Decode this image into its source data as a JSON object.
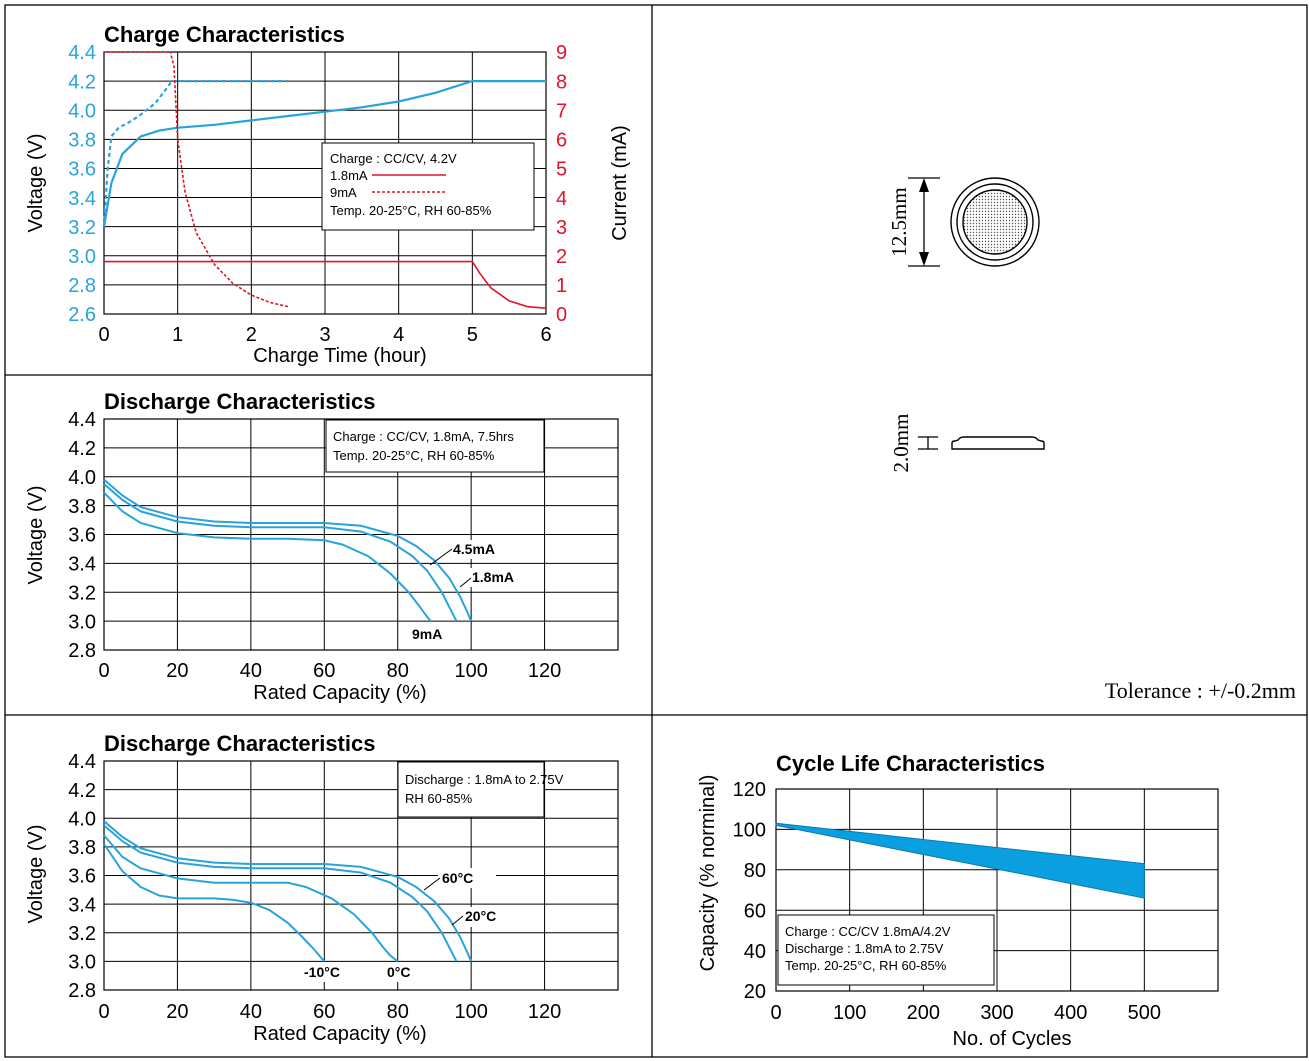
{
  "colors": {
    "blue": "#29a3dc",
    "red": "#e0142a",
    "black": "#000000",
    "band": "#0aa0e0"
  },
  "chart_data": [
    {
      "id": "charge",
      "type": "line",
      "title": "Charge Characteristics",
      "xlabel": "Charge Time (hour)",
      "ylabel": "Voltage (V)",
      "y2label": "Current (mA)",
      "xlim": [
        0,
        6
      ],
      "ylim": [
        2.6,
        4.4
      ],
      "y2lim": [
        0,
        9
      ],
      "xticks": [
        "0",
        "1",
        "2",
        "3",
        "4",
        "5",
        "6"
      ],
      "yticks": [
        "2.6",
        "2.8",
        "3.0",
        "3.2",
        "3.4",
        "3.6",
        "3.8",
        "4.0",
        "4.2",
        "4.4"
      ],
      "y2ticks": [
        "0",
        "1",
        "2",
        "3",
        "4",
        "5",
        "6",
        "7",
        "8",
        "9"
      ],
      "legend": {
        "lines": [
          "Charge : CC/CV, 4.2V",
          "1.8mA",
          "9mA",
          "Temp. 20-25°C, RH 60-85%"
        ]
      },
      "series": [
        {
          "name": "1.8mA",
          "quantity": "voltage",
          "style": "solid",
          "x": [
            0,
            0.1,
            0.25,
            0.5,
            0.75,
            1.0,
            1.5,
            2,
            2.5,
            3,
            3.5,
            4,
            4.5,
            5,
            5.5,
            6
          ],
          "y": [
            3.2,
            3.5,
            3.7,
            3.82,
            3.86,
            3.88,
            3.9,
            3.93,
            3.96,
            3.99,
            4.02,
            4.06,
            4.12,
            4.2,
            4.2,
            4.2
          ]
        },
        {
          "name": "9mA",
          "quantity": "voltage",
          "style": "dashed",
          "x": [
            0,
            0.05,
            0.1,
            0.2,
            0.35,
            0.5,
            0.7,
            0.85,
            0.92,
            1.0,
            1.5,
            2,
            2.5
          ],
          "y": [
            3.2,
            3.6,
            3.82,
            3.88,
            3.92,
            3.97,
            4.05,
            4.15,
            4.2,
            4.2,
            4.2,
            4.2,
            4.2
          ]
        },
        {
          "name": "1.8mA",
          "quantity": "current",
          "style": "solid",
          "x": [
            0,
            1,
            2,
            3,
            4,
            5,
            5.1,
            5.25,
            5.5,
            5.75,
            6
          ],
          "y": [
            1.8,
            1.8,
            1.8,
            1.8,
            1.8,
            1.8,
            1.4,
            0.9,
            0.45,
            0.25,
            0.2
          ]
        },
        {
          "name": "9mA",
          "quantity": "current",
          "style": "dashed",
          "x": [
            0,
            0.5,
            0.9,
            0.95,
            1.0,
            1.1,
            1.25,
            1.5,
            1.75,
            2.0,
            2.25,
            2.5
          ],
          "y": [
            9,
            9,
            9,
            8.5,
            6.0,
            4.2,
            2.8,
            1.7,
            1.05,
            0.65,
            0.4,
            0.25
          ]
        }
      ]
    },
    {
      "id": "discharge-rate",
      "type": "line",
      "title": "Discharge Characteristics",
      "xlabel": "Rated Capacity (%)",
      "ylabel": "Voltage (V)",
      "xlim": [
        0,
        140
      ],
      "ylim": [
        2.8,
        4.4
      ],
      "xticks": [
        "0",
        "20",
        "40",
        "60",
        "80",
        "100",
        "120"
      ],
      "yticks": [
        "2.8",
        "3.0",
        "3.2",
        "3.4",
        "3.6",
        "3.8",
        "4.0",
        "4.2",
        "4.4"
      ],
      "legend": {
        "lines": [
          "Charge : CC/CV, 1.8mA, 7.5hrs",
          "Temp. 20-25°C, RH 60-85%"
        ]
      },
      "series": [
        {
          "name": "1.8mA",
          "label_text": "1.8mA",
          "x": [
            0,
            5,
            10,
            20,
            30,
            40,
            50,
            60,
            70,
            80,
            85,
            90,
            94,
            97,
            99,
            100
          ],
          "y": [
            3.98,
            3.87,
            3.79,
            3.72,
            3.69,
            3.68,
            3.68,
            3.68,
            3.66,
            3.59,
            3.52,
            3.42,
            3.3,
            3.17,
            3.06,
            3.0
          ]
        },
        {
          "name": "4.5mA",
          "label_text": "4.5mA",
          "x": [
            0,
            5,
            10,
            20,
            30,
            40,
            50,
            60,
            70,
            78,
            84,
            88,
            92,
            95,
            96
          ],
          "y": [
            3.95,
            3.84,
            3.76,
            3.69,
            3.66,
            3.65,
            3.65,
            3.65,
            3.62,
            3.55,
            3.45,
            3.35,
            3.2,
            3.05,
            3.0
          ]
        },
        {
          "name": "9mA",
          "label_text": "9mA",
          "x": [
            0,
            5,
            10,
            20,
            30,
            40,
            50,
            60,
            65,
            72,
            78,
            83,
            86,
            88,
            89
          ],
          "y": [
            3.89,
            3.76,
            3.68,
            3.61,
            3.58,
            3.57,
            3.57,
            3.56,
            3.53,
            3.45,
            3.33,
            3.2,
            3.1,
            3.03,
            3.0
          ]
        }
      ]
    },
    {
      "id": "discharge-temp",
      "type": "line",
      "title": "Discharge Characteristics",
      "xlabel": "Rated Capacity (%)",
      "ylabel": "Voltage (V)",
      "xlim": [
        0,
        140
      ],
      "ylim": [
        2.8,
        4.4
      ],
      "xticks": [
        "0",
        "20",
        "40",
        "60",
        "80",
        "100",
        "120"
      ],
      "yticks": [
        "2.8",
        "3.0",
        "3.2",
        "3.4",
        "3.6",
        "3.8",
        "4.0",
        "4.2",
        "4.4"
      ],
      "legend": {
        "lines": [
          "Discharge : 1.8mA to 2.75V",
          "RH 60-85%"
        ]
      },
      "series": [
        {
          "name": "20°C",
          "label_text": "20°C",
          "x": [
            0,
            5,
            10,
            20,
            30,
            40,
            50,
            60,
            70,
            80,
            85,
            90,
            94,
            97,
            99,
            100
          ],
          "y": [
            3.98,
            3.87,
            3.79,
            3.72,
            3.69,
            3.68,
            3.68,
            3.68,
            3.66,
            3.59,
            3.52,
            3.42,
            3.3,
            3.17,
            3.06,
            3.0
          ]
        },
        {
          "name": "60°C",
          "label_text": "60°C",
          "x": [
            0,
            5,
            10,
            20,
            30,
            40,
            50,
            60,
            70,
            78,
            84,
            88,
            92,
            95,
            96
          ],
          "y": [
            3.95,
            3.84,
            3.76,
            3.69,
            3.66,
            3.65,
            3.65,
            3.65,
            3.62,
            3.55,
            3.45,
            3.35,
            3.2,
            3.05,
            3.0
          ]
        },
        {
          "name": "0°C",
          "label_text": "0°C",
          "x": [
            0,
            5,
            10,
            20,
            30,
            40,
            50,
            55,
            62,
            68,
            73,
            76,
            78,
            80
          ],
          "y": [
            3.88,
            3.73,
            3.65,
            3.58,
            3.55,
            3.55,
            3.55,
            3.52,
            3.44,
            3.33,
            3.2,
            3.1,
            3.04,
            3.0
          ]
        },
        {
          "name": "-10°C",
          "label_text": "-10°C",
          "x": [
            0,
            5,
            10,
            15,
            20,
            30,
            35,
            40,
            45,
            50,
            54,
            57,
            59,
            60
          ],
          "y": [
            3.82,
            3.63,
            3.52,
            3.46,
            3.44,
            3.44,
            3.43,
            3.41,
            3.36,
            3.27,
            3.17,
            3.09,
            3.03,
            3.0
          ]
        }
      ]
    },
    {
      "id": "cycle-life",
      "type": "area",
      "title": "Cycle Life Characteristics",
      "xlabel": "No. of Cycles",
      "ylabel": "Capacity (% norminal)",
      "xlim": [
        0,
        600
      ],
      "ylim": [
        20,
        120
      ],
      "xticks": [
        "0",
        "100",
        "200",
        "300",
        "400",
        "500"
      ],
      "yticks": [
        "20",
        "40",
        "60",
        "80",
        "100",
        "120"
      ],
      "legend": {
        "lines": [
          "Charge : CC/CV 1.8mA/4.2V",
          "Discharge : 1.8mA to 2.75V",
          "Temp. 20-25°C, RH 60-85%"
        ]
      },
      "band": {
        "x": [
          0,
          500
        ],
        "upper": [
          103,
          83
        ],
        "lower": [
          102,
          66
        ]
      }
    }
  ],
  "dimensions": {
    "diameter": "12.5mm",
    "thickness": "2.0mm",
    "tolerance": "Tolerance : +/-0.2mm"
  }
}
